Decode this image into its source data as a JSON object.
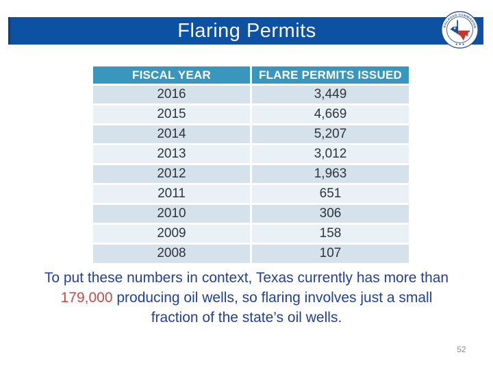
{
  "slide": {
    "title": "Flaring Permits",
    "page_number": "52",
    "colors": {
      "banner_blue": "#0d51a3",
      "banner_edge": "#173a6e",
      "title_text": "#f8f5ee",
      "header_teal": "#3997bd",
      "row_dark": "#d5e2eb",
      "row_light": "#eaf1f6",
      "cell_text": "#30333b",
      "note_blue": "#21409a",
      "note_red": "#cc4842",
      "page_number_gray": "#8a8a8a"
    }
  },
  "logo": {
    "name": "railroad-commission-of-texas-seal",
    "ring_text": "RAILROAD COMMISSION OF TEXAS",
    "stars": "★ ★ ★"
  },
  "table": {
    "columns": [
      "FISCAL YEAR",
      "FLARE PERMITS ISSUED"
    ],
    "rows": [
      [
        "2016",
        "3,449"
      ],
      [
        "2015",
        "4,669"
      ],
      [
        "2014",
        "5,207"
      ],
      [
        "2013",
        "3,012"
      ],
      [
        "2012",
        "1,963"
      ],
      [
        "2011",
        "651"
      ],
      [
        "2010",
        "306"
      ],
      [
        "2009",
        "158"
      ],
      [
        "2008",
        "107"
      ]
    ]
  },
  "note": {
    "part1": "To put these numbers in context, Texas currently has more than ",
    "highlight": "179,000",
    "part2": " producing oil wells, so flaring involves just a small fraction of the state’s oil wells."
  },
  "chart_data": {
    "type": "table",
    "title": "Flaring Permits",
    "categories": [
      "2016",
      "2015",
      "2014",
      "2013",
      "2012",
      "2011",
      "2010",
      "2009",
      "2008"
    ],
    "values": [
      3449,
      4669,
      5207,
      3012,
      1963,
      651,
      306,
      158,
      107
    ],
    "xlabel": "FISCAL YEAR",
    "ylabel": "FLARE PERMITS ISSUED"
  }
}
